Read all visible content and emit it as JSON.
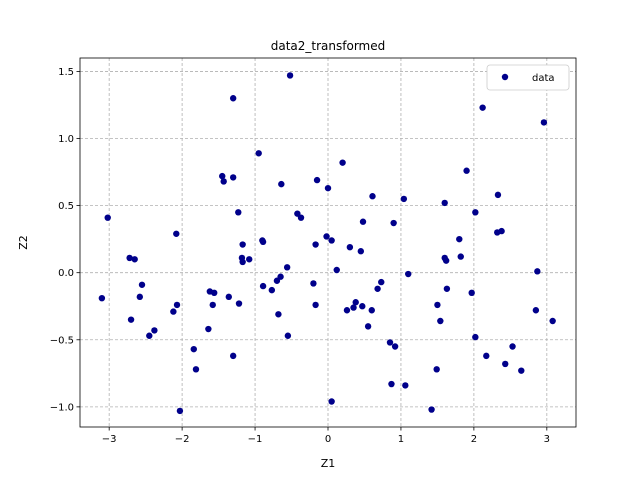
{
  "chart_data": {
    "type": "scatter",
    "title": "data2_transformed",
    "xlabel": "Z1",
    "ylabel": "Z2",
    "xlim": [
      -3.4,
      3.4
    ],
    "ylim": [
      -1.15,
      1.6
    ],
    "xticks": [
      -3,
      -2,
      -1,
      0,
      1,
      2,
      3
    ],
    "yticks": [
      -1.0,
      -0.5,
      0.0,
      0.5,
      1.0,
      1.5
    ],
    "xtick_labels": [
      "−3",
      "−2",
      "−1",
      "0",
      "1",
      "2",
      "3"
    ],
    "ytick_labels": [
      "−1.0",
      "−0.5",
      "0.0",
      "0.5",
      "1.0",
      "1.5"
    ],
    "grid": true,
    "legend_position": "top-right",
    "marker_color": "#00008b",
    "series": [
      {
        "name": "data",
        "points": [
          [
            -3.1,
            -0.19
          ],
          [
            -3.02,
            0.41
          ],
          [
            -2.72,
            0.11
          ],
          [
            -2.65,
            0.1
          ],
          [
            -2.7,
            -0.35
          ],
          [
            -2.55,
            -0.09
          ],
          [
            -2.58,
            -0.18
          ],
          [
            -2.45,
            -0.47
          ],
          [
            -2.38,
            -0.43
          ],
          [
            -2.12,
            -0.29
          ],
          [
            -2.08,
            0.29
          ],
          [
            -2.07,
            -0.24
          ],
          [
            -2.03,
            -1.03
          ],
          [
            -1.84,
            -0.57
          ],
          [
            -1.81,
            -0.72
          ],
          [
            -1.64,
            -0.42
          ],
          [
            -1.62,
            -0.14
          ],
          [
            -1.58,
            -0.24
          ],
          [
            -1.56,
            -0.15
          ],
          [
            -1.45,
            0.72
          ],
          [
            -1.43,
            0.68
          ],
          [
            -1.36,
            -0.18
          ],
          [
            -1.3,
            1.3
          ],
          [
            -1.3,
            0.71
          ],
          [
            -1.3,
            -0.62
          ],
          [
            -1.23,
            0.45
          ],
          [
            -1.22,
            -0.23
          ],
          [
            -1.17,
            0.21
          ],
          [
            -1.18,
            0.11
          ],
          [
            -1.17,
            0.08
          ],
          [
            -1.08,
            0.1
          ],
          [
            -0.95,
            0.89
          ],
          [
            -0.9,
            0.24
          ],
          [
            -0.89,
            0.23
          ],
          [
            -0.89,
            -0.1
          ],
          [
            -0.77,
            -0.13
          ],
          [
            -0.7,
            -0.06
          ],
          [
            -0.68,
            -0.31
          ],
          [
            -0.65,
            -0.03
          ],
          [
            -0.64,
            0.66
          ],
          [
            -0.56,
            0.04
          ],
          [
            -0.55,
            -0.47
          ],
          [
            -0.52,
            1.47
          ],
          [
            -0.42,
            0.44
          ],
          [
            -0.37,
            0.41
          ],
          [
            -0.2,
            -0.08
          ],
          [
            -0.17,
            -0.24
          ],
          [
            -0.17,
            0.21
          ],
          [
            -0.15,
            0.69
          ],
          [
            -0.02,
            0.27
          ],
          [
            0.0,
            0.63
          ],
          [
            0.05,
            0.24
          ],
          [
            0.05,
            -0.96
          ],
          [
            0.12,
            0.02
          ],
          [
            0.2,
            0.82
          ],
          [
            0.26,
            -0.28
          ],
          [
            0.3,
            0.19
          ],
          [
            0.35,
            -0.26
          ],
          [
            0.38,
            -0.22
          ],
          [
            0.45,
            0.16
          ],
          [
            0.47,
            -0.25
          ],
          [
            0.48,
            0.38
          ],
          [
            0.55,
            -0.4
          ],
          [
            0.6,
            -0.28
          ],
          [
            0.61,
            0.57
          ],
          [
            0.68,
            -0.12
          ],
          [
            0.73,
            -0.07
          ],
          [
            0.85,
            -0.52
          ],
          [
            0.87,
            -0.83
          ],
          [
            0.9,
            0.37
          ],
          [
            0.92,
            -0.55
          ],
          [
            1.04,
            0.55
          ],
          [
            1.06,
            -0.84
          ],
          [
            1.1,
            -0.01
          ],
          [
            1.42,
            -1.02
          ],
          [
            1.49,
            -0.72
          ],
          [
            1.5,
            -0.24
          ],
          [
            1.54,
            -0.36
          ],
          [
            1.6,
            0.11
          ],
          [
            1.6,
            0.52
          ],
          [
            1.62,
            0.09
          ],
          [
            1.63,
            -0.12
          ],
          [
            1.8,
            0.25
          ],
          [
            1.82,
            0.12
          ],
          [
            1.9,
            0.76
          ],
          [
            1.97,
            -0.15
          ],
          [
            2.02,
            0.45
          ],
          [
            2.02,
            -0.48
          ],
          [
            2.12,
            1.23
          ],
          [
            2.17,
            -0.62
          ],
          [
            2.32,
            0.3
          ],
          [
            2.33,
            0.58
          ],
          [
            2.38,
            0.31
          ],
          [
            2.43,
            -0.68
          ],
          [
            2.53,
            -0.55
          ],
          [
            2.65,
            -0.73
          ],
          [
            2.85,
            -0.28
          ],
          [
            2.87,
            0.01
          ],
          [
            2.96,
            1.12
          ],
          [
            3.08,
            -0.36
          ]
        ]
      }
    ]
  }
}
